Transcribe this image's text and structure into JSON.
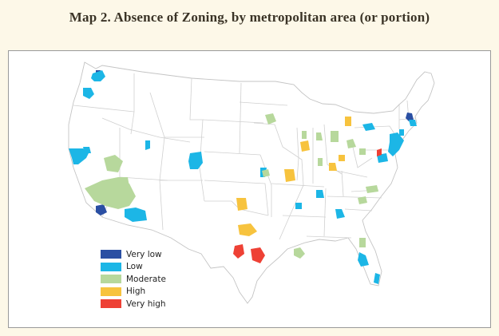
{
  "title": "Map 2. Absence of Zoning, by metropolitan area (or portion)",
  "legend": {
    "items": [
      {
        "label": "Very low",
        "color": "#2a4fa3"
      },
      {
        "label": "Low",
        "color": "#1cb6e6"
      },
      {
        "label": "Moderate",
        "color": "#b7d89c"
      },
      {
        "label": "High",
        "color": "#f7c33e"
      },
      {
        "label": "Very high",
        "color": "#ee4135"
      }
    ]
  },
  "metro_areas": [
    {
      "level": "Very low"
    },
    {
      "level": "Very low"
    },
    {
      "level": "Very low"
    },
    {
      "level": "Low"
    },
    {
      "level": "Low"
    },
    {
      "level": "Low"
    },
    {
      "level": "Low"
    },
    {
      "level": "Low"
    },
    {
      "level": "Low"
    },
    {
      "level": "Low"
    },
    {
      "level": "Low"
    },
    {
      "level": "Low"
    },
    {
      "level": "Low"
    },
    {
      "level": "Low"
    },
    {
      "level": "Low"
    },
    {
      "level": "Low"
    },
    {
      "level": "Low"
    },
    {
      "level": "Low"
    },
    {
      "level": "Low"
    },
    {
      "level": "Moderate"
    },
    {
      "level": "Moderate"
    },
    {
      "level": "Moderate"
    },
    {
      "level": "Moderate"
    },
    {
      "level": "Moderate"
    },
    {
      "level": "Moderate"
    },
    {
      "level": "Moderate"
    },
    {
      "level": "Moderate"
    },
    {
      "level": "Moderate"
    },
    {
      "level": "Moderate"
    },
    {
      "level": "Moderate"
    },
    {
      "level": "Moderate"
    },
    {
      "level": "Moderate"
    },
    {
      "level": "Moderate"
    },
    {
      "level": "Moderate"
    },
    {
      "level": "High"
    },
    {
      "level": "High"
    },
    {
      "level": "High"
    },
    {
      "level": "High"
    },
    {
      "level": "High"
    },
    {
      "level": "High"
    },
    {
      "level": "High"
    },
    {
      "level": "Very high"
    },
    {
      "level": "Very high"
    },
    {
      "level": "Very high"
    }
  ]
}
